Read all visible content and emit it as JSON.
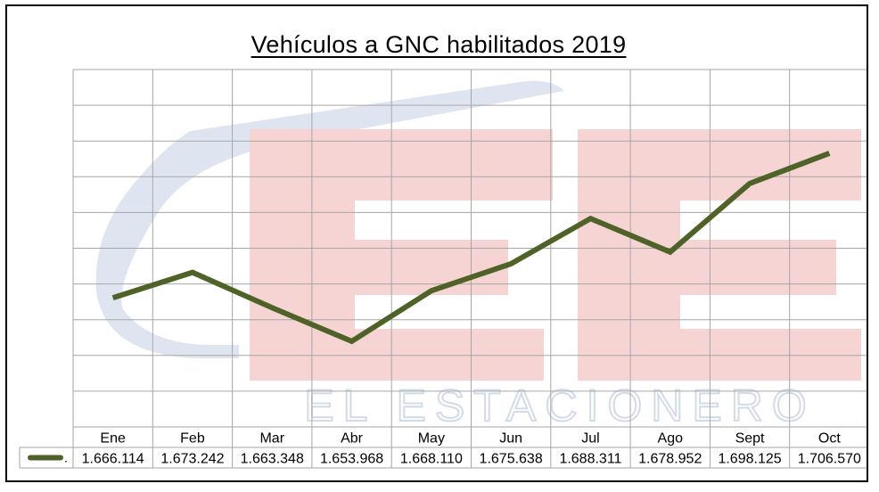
{
  "chart_data": {
    "type": "line",
    "title": "Vehículos a GNC habilitados 2019",
    "categories": [
      "Ene",
      "Feb",
      "Mar",
      "Abr",
      "May",
      "Jun",
      "Jul",
      "Ago",
      "Sept",
      "Oct"
    ],
    "value_labels": [
      "1.666.114",
      "1.673.242",
      "1.663.348",
      "1.653.968",
      "1.668.110",
      "1.675.638",
      "1.688.311",
      "1.678.952",
      "1.698.125",
      "1.706.570"
    ],
    "values": [
      1666114,
      1673242,
      1663348,
      1653968,
      1668110,
      1675638,
      1688311,
      1678952,
      1698125,
      1706570
    ],
    "legend_marker": ".",
    "ylim": [
      1630000,
      1730000
    ],
    "grid": true,
    "legend": "bottom-left (data table)",
    "line_color": "#4f6228"
  },
  "watermark": {
    "text": "EL ESTACIONERO",
    "red": "#f2c4c4",
    "blue": "#c9d2e4"
  }
}
